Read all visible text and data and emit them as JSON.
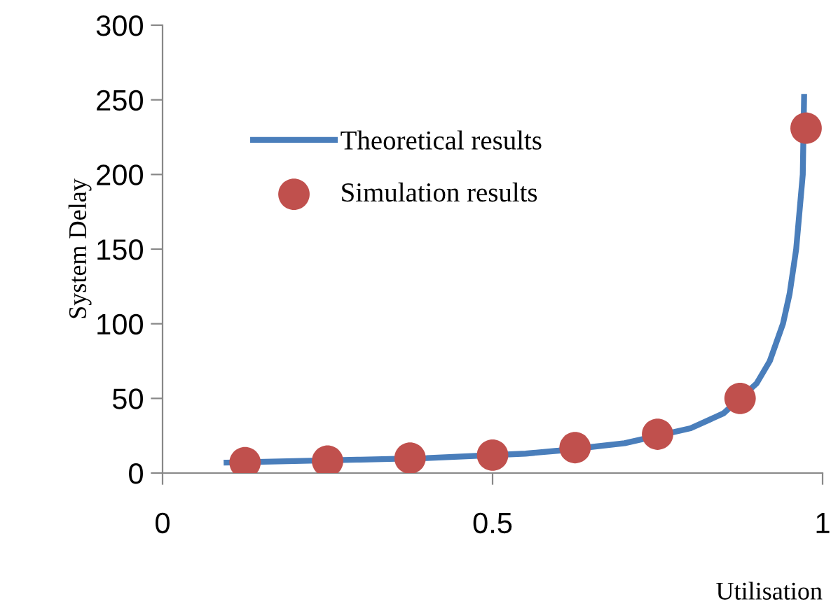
{
  "chart_data": {
    "type": "line",
    "xlabel": "Utilisation",
    "ylabel": "System Delay",
    "xlim": [
      0,
      1
    ],
    "xticks": [
      0,
      0.5,
      1
    ],
    "ylim": [
      0,
      300
    ],
    "yticks": [
      0,
      50,
      100,
      150,
      200,
      250,
      300
    ],
    "grid": false,
    "legend": "top left",
    "series": [
      {
        "name": "Theoretical results",
        "color": "#4a7ebb",
        "marker": "none",
        "line_style": "solid",
        "x": [
          0.097,
          0.2,
          0.3,
          0.4,
          0.55,
          0.6,
          0.7,
          0.8,
          0.85,
          0.9,
          0.92,
          0.94,
          0.95,
          0.96,
          0.97,
          0.972
        ],
        "values": [
          7,
          8,
          9,
          10,
          13,
          15,
          20,
          30,
          40,
          60,
          75,
          100,
          120,
          150,
          200,
          252
        ]
      },
      {
        "name": "Simulation results",
        "type": "scatter",
        "color": "#c0504d",
        "marker": "circle",
        "x": [
          0.125,
          0.25,
          0.375,
          0.5,
          0.625,
          0.75,
          0.875,
          0.975
        ],
        "values": [
          7,
          8,
          10,
          12,
          17,
          26,
          50,
          231
        ]
      }
    ]
  }
}
